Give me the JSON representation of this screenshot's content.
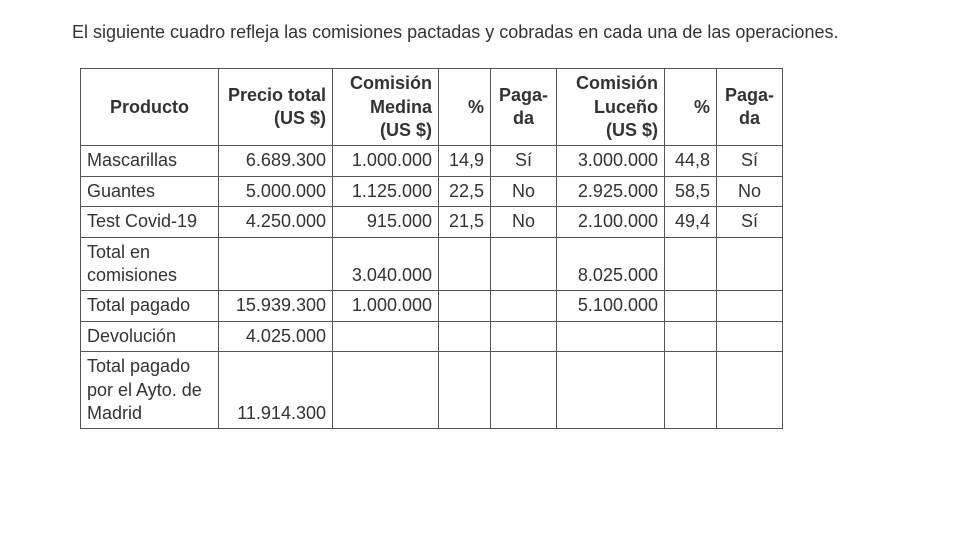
{
  "intro": "El siguiente cuadro refleja las comisiones pactadas y cobradas en cada una de las operaciones.",
  "table": {
    "columns": [
      {
        "key": "product",
        "label": "Producto",
        "class": "c-product",
        "align": "left"
      },
      {
        "key": "price",
        "label": "Precio total (US $)",
        "class": "c-price",
        "align": "right"
      },
      {
        "key": "medina",
        "label": "Comisión Medina (US $)",
        "class": "c-medina",
        "align": "right"
      },
      {
        "key": "pct1",
        "label": "%",
        "class": "c-pct1",
        "align": "right"
      },
      {
        "key": "paid1",
        "label": "Paga-da",
        "class": "c-paid1",
        "align": "center"
      },
      {
        "key": "luceno",
        "label": "Comisión Luceño (US $)",
        "class": "c-luceno",
        "align": "right"
      },
      {
        "key": "pct2",
        "label": "%",
        "class": "c-pct2",
        "align": "right"
      },
      {
        "key": "paid2",
        "label": "Paga-da",
        "class": "c-paid2",
        "align": "center"
      }
    ],
    "rows": [
      {
        "product": "Mascarillas",
        "price": "6.689.300",
        "medina": "1.000.000",
        "pct1": "14,9",
        "paid1": "Sí",
        "luceno": "3.000.000",
        "pct2": "44,8",
        "paid2": "Sí"
      },
      {
        "product": "Guantes",
        "price": "5.000.000",
        "medina": "1.125.000",
        "pct1": "22,5",
        "paid1": "No",
        "luceno": "2.925.000",
        "pct2": "58,5",
        "paid2": "No"
      },
      {
        "product": "Test Covid-19",
        "price": "4.250.000",
        "medina": "915.000",
        "pct1": "21,5",
        "paid1": "No",
        "luceno": "2.100.000",
        "pct2": "49,4",
        "paid2": "Sí"
      },
      {
        "product": "Total en comisiones",
        "price": "",
        "medina": "3.040.000",
        "pct1": "",
        "paid1": "",
        "luceno": "8.025.000",
        "pct2": "",
        "paid2": ""
      },
      {
        "product": "Total pagado",
        "price": "15.939.300",
        "medina": "1.000.000",
        "pct1": "",
        "paid1": "",
        "luceno": "5.100.000",
        "pct2": "",
        "paid2": ""
      },
      {
        "product": "Devolución",
        "price": "4.025.000",
        "medina": "",
        "pct1": "",
        "paid1": "",
        "luceno": "",
        "pct2": "",
        "paid2": ""
      },
      {
        "product": "Total pagado por el Ayto. de Madrid",
        "price": "11.914.300",
        "medina": "",
        "pct1": "",
        "paid1": "",
        "luceno": "",
        "pct2": "",
        "paid2": ""
      }
    ],
    "border_color": "#555555",
    "background_color": "#ffffff",
    "font_size_pt": 18
  }
}
